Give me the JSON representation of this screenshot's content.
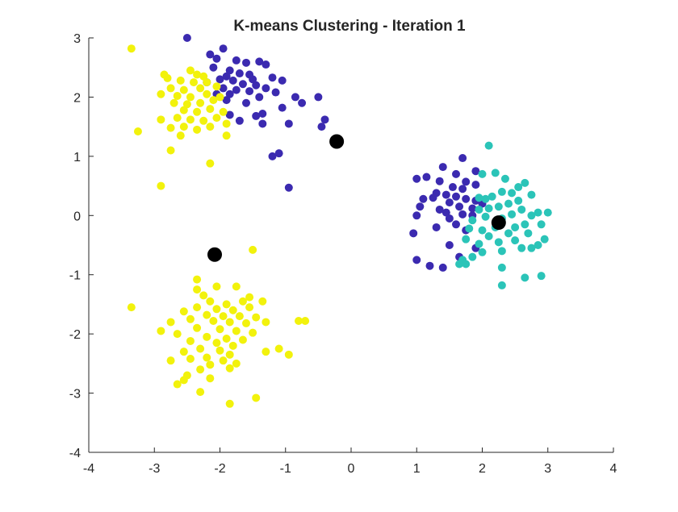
{
  "chart_data": {
    "type": "scatter",
    "title": "K-means Clustering - Iteration 1",
    "xlabel": "",
    "ylabel": "",
    "xlim": [
      -4,
      4
    ],
    "ylim": [
      -4,
      3
    ],
    "xticks": [
      "-4",
      "-3",
      "-2",
      "-1",
      "0",
      "1",
      "2",
      "3",
      "4"
    ],
    "yticks": [
      "-4",
      "-3",
      "-2",
      "-1",
      "0",
      "1",
      "2",
      "3"
    ],
    "grid": false,
    "colors": {
      "purple": "#3b2ab0",
      "yellow": "#f2f20c",
      "teal": "#2bc4b8",
      "centroid": "#000000"
    },
    "series": [
      {
        "color": "purple",
        "points": [
          [
            -2.5,
            3.0
          ],
          [
            -1.95,
            2.82
          ],
          [
            -2.15,
            2.72
          ],
          [
            -2.05,
            2.65
          ],
          [
            -1.75,
            2.62
          ],
          [
            -1.6,
            2.58
          ],
          [
            -1.4,
            2.6
          ],
          [
            -1.3,
            2.55
          ],
          [
            -2.1,
            2.5
          ],
          [
            -1.85,
            2.45
          ],
          [
            -1.7,
            2.4
          ],
          [
            -1.55,
            2.38
          ],
          [
            -1.9,
            2.35
          ],
          [
            -2.0,
            2.3
          ],
          [
            -1.8,
            2.28
          ],
          [
            -1.5,
            2.3
          ],
          [
            -1.2,
            2.33
          ],
          [
            -1.05,
            2.28
          ],
          [
            -2.2,
            2.25
          ],
          [
            -1.65,
            2.22
          ],
          [
            -1.45,
            2.2
          ],
          [
            -1.95,
            2.15
          ],
          [
            -1.75,
            2.12
          ],
          [
            -1.55,
            2.1
          ],
          [
            -1.3,
            2.15
          ],
          [
            -2.05,
            2.05
          ],
          [
            -1.85,
            2.05
          ],
          [
            -1.15,
            2.08
          ],
          [
            -1.4,
            2.0
          ],
          [
            -0.85,
            2.0
          ],
          [
            -0.5,
            2.0
          ],
          [
            -1.9,
            1.95
          ],
          [
            -1.6,
            1.9
          ],
          [
            -1.05,
            1.82
          ],
          [
            -0.75,
            1.9
          ],
          [
            -1.85,
            1.7
          ],
          [
            -1.45,
            1.68
          ],
          [
            -1.35,
            1.72
          ],
          [
            -0.4,
            1.62
          ],
          [
            -1.7,
            1.6
          ],
          [
            -1.35,
            1.55
          ],
          [
            -0.95,
            1.55
          ],
          [
            -0.45,
            1.5
          ],
          [
            -1.1,
            1.05
          ],
          [
            -1.2,
            1.0
          ],
          [
            -0.95,
            0.47
          ],
          [
            1.7,
            0.97
          ],
          [
            1.4,
            0.82
          ],
          [
            1.9,
            0.75
          ],
          [
            1.15,
            0.65
          ],
          [
            1.0,
            0.62
          ],
          [
            1.6,
            0.7
          ],
          [
            1.75,
            0.57
          ],
          [
            1.35,
            0.58
          ],
          [
            1.9,
            0.52
          ],
          [
            1.55,
            0.48
          ],
          [
            1.7,
            0.45
          ],
          [
            1.3,
            0.38
          ],
          [
            1.25,
            0.3
          ],
          [
            1.45,
            0.35
          ],
          [
            1.6,
            0.32
          ],
          [
            1.75,
            0.28
          ],
          [
            1.9,
            0.25
          ],
          [
            2.0,
            0.2
          ],
          [
            1.5,
            0.22
          ],
          [
            1.1,
            0.28
          ],
          [
            1.65,
            0.15
          ],
          [
            1.85,
            0.12
          ],
          [
            1.35,
            0.1
          ],
          [
            1.05,
            0.15
          ],
          [
            1.45,
            0.05
          ],
          [
            1.7,
            0.02
          ],
          [
            1.0,
            0.0
          ],
          [
            1.5,
            -0.05
          ],
          [
            1.85,
            0.0
          ],
          [
            1.6,
            -0.15
          ],
          [
            1.3,
            -0.2
          ],
          [
            1.75,
            -0.25
          ],
          [
            0.95,
            -0.3
          ],
          [
            1.5,
            -0.5
          ],
          [
            1.9,
            -0.55
          ],
          [
            1.65,
            -0.7
          ],
          [
            1.0,
            -0.75
          ],
          [
            1.2,
            -0.85
          ],
          [
            1.4,
            -0.88
          ]
        ]
      },
      {
        "color": "yellow",
        "points": [
          [
            -3.35,
            2.82
          ],
          [
            -2.45,
            2.45
          ],
          [
            -2.85,
            2.38
          ],
          [
            -2.35,
            2.38
          ],
          [
            -2.25,
            2.35
          ],
          [
            -2.8,
            2.32
          ],
          [
            -2.6,
            2.28
          ],
          [
            -2.4,
            2.25
          ],
          [
            -2.2,
            2.25
          ],
          [
            -2.75,
            2.15
          ],
          [
            -2.55,
            2.12
          ],
          [
            -2.3,
            2.15
          ],
          [
            -2.05,
            2.18
          ],
          [
            -2.9,
            2.05
          ],
          [
            -2.65,
            2.02
          ],
          [
            -2.45,
            2.0
          ],
          [
            -2.2,
            2.05
          ],
          [
            -2.0,
            2.0
          ],
          [
            -2.7,
            1.9
          ],
          [
            -2.5,
            1.88
          ],
          [
            -2.3,
            1.9
          ],
          [
            -2.1,
            1.95
          ],
          [
            -2.55,
            1.78
          ],
          [
            -2.35,
            1.75
          ],
          [
            -2.15,
            1.8
          ],
          [
            -1.95,
            1.75
          ],
          [
            -2.9,
            1.62
          ],
          [
            -2.65,
            1.65
          ],
          [
            -2.45,
            1.62
          ],
          [
            -2.25,
            1.6
          ],
          [
            -2.05,
            1.65
          ],
          [
            -1.9,
            1.55
          ],
          [
            -2.75,
            1.48
          ],
          [
            -2.55,
            1.5
          ],
          [
            -2.35,
            1.45
          ],
          [
            -2.15,
            1.5
          ],
          [
            -3.25,
            1.42
          ],
          [
            -2.6,
            1.35
          ],
          [
            -1.9,
            1.35
          ],
          [
            -2.75,
            1.1
          ],
          [
            -2.15,
            0.88
          ],
          [
            -2.9,
            0.5
          ],
          [
            -1.5,
            -0.58
          ],
          [
            -2.35,
            -1.08
          ],
          [
            -2.05,
            -1.2
          ],
          [
            -2.35,
            -1.25
          ],
          [
            -1.75,
            -1.2
          ],
          [
            -2.25,
            -1.35
          ],
          [
            -1.55,
            -1.38
          ],
          [
            -2.15,
            -1.45
          ],
          [
            -1.9,
            -1.5
          ],
          [
            -1.65,
            -1.45
          ],
          [
            -1.35,
            -1.45
          ],
          [
            -2.35,
            -1.55
          ],
          [
            -2.05,
            -1.58
          ],
          [
            -1.8,
            -1.6
          ],
          [
            -1.55,
            -1.55
          ],
          [
            -3.35,
            -1.55
          ],
          [
            -2.55,
            -1.62
          ],
          [
            -2.2,
            -1.68
          ],
          [
            -1.95,
            -1.7
          ],
          [
            -1.7,
            -1.7
          ],
          [
            -1.45,
            -1.72
          ],
          [
            -2.45,
            -1.75
          ],
          [
            -2.1,
            -1.78
          ],
          [
            -1.85,
            -1.8
          ],
          [
            -1.6,
            -1.82
          ],
          [
            -1.3,
            -1.8
          ],
          [
            -0.8,
            -1.78
          ],
          [
            -0.7,
            -1.78
          ],
          [
            -2.75,
            -1.8
          ],
          [
            -2.9,
            -1.95
          ],
          [
            -2.35,
            -1.9
          ],
          [
            -2.0,
            -1.92
          ],
          [
            -1.75,
            -1.95
          ],
          [
            -1.5,
            -1.98
          ],
          [
            -2.65,
            -2.0
          ],
          [
            -2.2,
            -2.05
          ],
          [
            -1.9,
            -2.08
          ],
          [
            -1.65,
            -2.1
          ],
          [
            -2.45,
            -2.12
          ],
          [
            -2.05,
            -2.15
          ],
          [
            -1.8,
            -2.2
          ],
          [
            -2.3,
            -2.25
          ],
          [
            -2.0,
            -2.28
          ],
          [
            -1.3,
            -2.3
          ],
          [
            -1.1,
            -2.25
          ],
          [
            -0.95,
            -2.35
          ],
          [
            -2.55,
            -2.3
          ],
          [
            -1.85,
            -2.35
          ],
          [
            -2.2,
            -2.4
          ],
          [
            -2.75,
            -2.45
          ],
          [
            -2.45,
            -2.42
          ],
          [
            -1.95,
            -2.45
          ],
          [
            -1.75,
            -2.5
          ],
          [
            -2.15,
            -2.52
          ],
          [
            -1.85,
            -2.58
          ],
          [
            -2.3,
            -2.6
          ],
          [
            -2.5,
            -2.7
          ],
          [
            -2.15,
            -2.75
          ],
          [
            -2.55,
            -2.78
          ],
          [
            -2.65,
            -2.85
          ],
          [
            -2.3,
            -2.98
          ],
          [
            -1.45,
            -3.08
          ],
          [
            -1.85,
            -3.18
          ]
        ]
      },
      {
        "color": "teal",
        "points": [
          [
            2.1,
            1.18
          ],
          [
            2.2,
            0.72
          ],
          [
            2.0,
            0.7
          ],
          [
            2.35,
            0.62
          ],
          [
            2.55,
            0.48
          ],
          [
            2.65,
            0.55
          ],
          [
            2.75,
            0.35
          ],
          [
            2.45,
            0.38
          ],
          [
            2.3,
            0.4
          ],
          [
            2.15,
            0.32
          ],
          [
            2.05,
            0.28
          ],
          [
            1.95,
            0.3
          ],
          [
            2.55,
            0.25
          ],
          [
            2.4,
            0.2
          ],
          [
            2.25,
            0.15
          ],
          [
            2.1,
            0.12
          ],
          [
            1.95,
            0.1
          ],
          [
            2.6,
            0.1
          ],
          [
            2.85,
            0.05
          ],
          [
            3.0,
            0.05
          ],
          [
            2.75,
            0.0
          ],
          [
            2.45,
            0.02
          ],
          [
            2.3,
            -0.05
          ],
          [
            2.05,
            -0.02
          ],
          [
            1.85,
            -0.08
          ],
          [
            2.65,
            -0.15
          ],
          [
            2.9,
            -0.15
          ],
          [
            2.5,
            -0.2
          ],
          [
            2.2,
            -0.2
          ],
          [
            2.0,
            -0.25
          ],
          [
            1.8,
            -0.22
          ],
          [
            2.7,
            -0.3
          ],
          [
            2.4,
            -0.3
          ],
          [
            2.1,
            -0.35
          ],
          [
            1.75,
            -0.4
          ],
          [
            2.95,
            -0.4
          ],
          [
            2.5,
            -0.42
          ],
          [
            2.25,
            -0.45
          ],
          [
            1.95,
            -0.48
          ],
          [
            2.6,
            -0.55
          ],
          [
            2.75,
            -0.55
          ],
          [
            2.85,
            -0.5
          ],
          [
            2.3,
            -0.6
          ],
          [
            2.0,
            -0.62
          ],
          [
            1.85,
            -0.7
          ],
          [
            1.7,
            -0.75
          ],
          [
            1.65,
            -0.82
          ],
          [
            1.75,
            -0.82
          ],
          [
            2.3,
            -0.88
          ],
          [
            2.65,
            -1.05
          ],
          [
            2.9,
            -1.02
          ],
          [
            2.3,
            -1.18
          ]
        ]
      }
    ],
    "centroids": [
      [
        -0.22,
        1.25
      ],
      [
        2.25,
        -0.12
      ],
      [
        -2.08,
        -0.66
      ]
    ]
  }
}
